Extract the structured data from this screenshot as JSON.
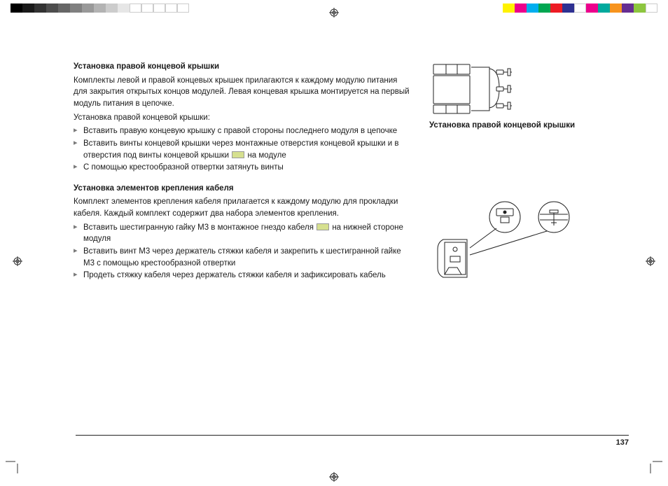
{
  "print": {
    "grayscale": [
      "#000000",
      "#1a1a1a",
      "#333333",
      "#4d4d4d",
      "#666666",
      "#808080",
      "#999999",
      "#b3b3b3",
      "#cccccc",
      "#e6e6e6",
      "#ffffff",
      "#ffffff",
      "#ffffff",
      "#ffffff",
      "#ffffff"
    ],
    "colors": [
      "#fff200",
      "#ec008c",
      "#00aeef",
      "#00a651",
      "#ed1c24",
      "#2e3192",
      "#ffffff",
      "#ec008c",
      "#00a99d",
      "#f7941e",
      "#662d91",
      "#8dc63f",
      "#ffffff"
    ]
  },
  "section1": {
    "heading": "Установка правой концевой крышки",
    "p1": "Комплекты левой и правой концевых крышек прилагаются к каждому модулю питания для закрытия открытых концов модулей. Левая концевая крышка монтируется на первый модуль питания в цепочке.",
    "p2": "Установка правой концевой крышки:",
    "items": [
      {
        "text": "Вставить правую концевую крышку с правой стороны последнего модуля в цепочке"
      },
      {
        "pre": "Вставить винты концевой крышки через монтажные отверстия концевой крышки и в отверстия под винты концевой крышки ",
        "marker": "#d6e08f",
        "post": " на модуле"
      },
      {
        "text": "С помощью крестообразной отвертки затянуть винты"
      }
    ]
  },
  "section2": {
    "heading": "Установка элементов крепления кабеля",
    "p1": "Комплект элементов крепления кабеля прилагается к каждому модулю для прокладки кабеля. Каждый комплект содержит два набора элементов крепления.",
    "items": [
      {
        "pre": "Вставить шестигранную гайку M3 в монтажное гнездо кабеля ",
        "marker": "#d6e08f",
        "post": " на нижней стороне модуля"
      },
      {
        "text": "Вставить винт M3 через держатель стяжки кабеля и закрепить к шестигранной гайке M3 с помощью крестообразной отвертки"
      },
      {
        "text": "Продеть стяжку кабеля через держатель стяжки кабеля и зафиксировать кабель"
      }
    ]
  },
  "side": {
    "caption1": "Установка правой концевой крышки"
  },
  "pagenum": "137"
}
